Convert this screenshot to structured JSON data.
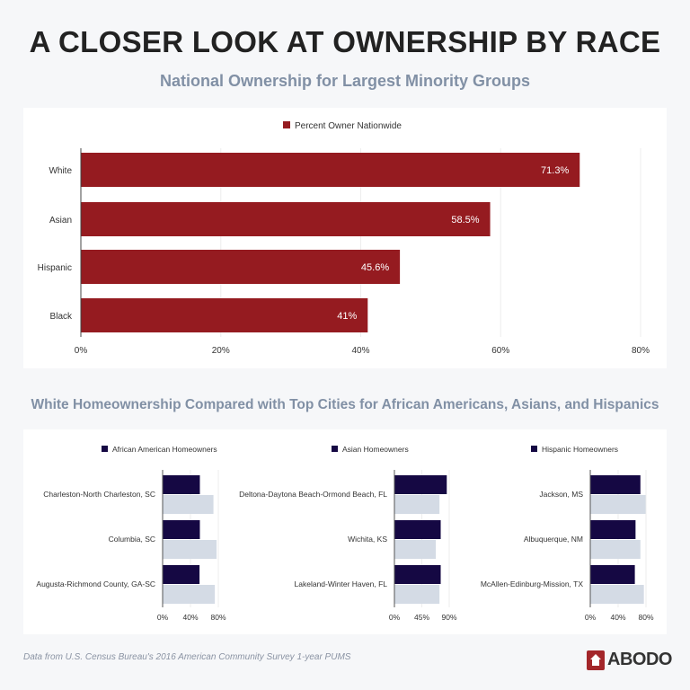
{
  "header": {
    "title": "A CLOSER LOOK AT OWNERSHIP BY RACE",
    "subtitle": "National Ownership for Largest Minority Groups",
    "subtitle2": "White Homeownership Compared with Top Cities for African Americans, Asians, and Hispanics"
  },
  "chart_data": [
    {
      "type": "bar",
      "orientation": "horizontal",
      "categories": [
        "White",
        "Asian",
        "Hispanic",
        "Black"
      ],
      "series": [
        {
          "name": "Percent Owner Nationwide",
          "values": [
            71.3,
            58.5,
            45.6,
            41
          ],
          "labels": [
            "71.3%",
            "58.5%",
            "45.6%",
            "41%"
          ],
          "color": "#951b20"
        }
      ],
      "xlim": [
        0,
        80
      ],
      "xticks": [
        "0%",
        "20%",
        "40%",
        "60%",
        "80%"
      ],
      "grid": true,
      "legend": "top"
    },
    {
      "type": "bar",
      "orientation": "horizontal",
      "categories": [
        "Charleston-North Charleston, SC",
        "Columbia, SC",
        "Augusta-Richmond County, GA-SC"
      ],
      "series": [
        {
          "name": "African American Homeowners",
          "values": [
            53.5,
            53.5,
            53
          ],
          "color": "#150843"
        },
        {
          "values": [
            73,
            77.5,
            75
          ],
          "color": "#d4dbe5"
        }
      ],
      "xlim": [
        0,
        80
      ],
      "xticks": [
        "0%",
        "40%",
        "80%"
      ],
      "legend": "top"
    },
    {
      "type": "bar",
      "orientation": "horizontal",
      "categories": [
        "Deltona-Daytona Beach-Ormond Beach, FL",
        "Wichita, KS",
        "Lakeland-Winter Haven, FL"
      ],
      "series": [
        {
          "name": "Asian Homeowners",
          "values": [
            86,
            76,
            76
          ],
          "color": "#150843"
        },
        {
          "values": [
            74,
            68,
            74
          ],
          "color": "#d4dbe5"
        }
      ],
      "xlim": [
        0,
        90
      ],
      "xticks": [
        "0%",
        "45%",
        "90%"
      ],
      "legend": "top"
    },
    {
      "type": "bar",
      "orientation": "horizontal",
      "categories": [
        "Jackson, MS",
        "Albuquerque, NM",
        "McAllen-Edinburg-Mission, TX"
      ],
      "series": [
        {
          "name": "Hispanic Homeowners",
          "values": [
            72,
            65,
            64
          ],
          "color": "#150843"
        },
        {
          "values": [
            79.5,
            72,
            77
          ],
          "color": "#d4dbe5"
        }
      ],
      "xlim": [
        0,
        80
      ],
      "xticks": [
        "0%",
        "40%",
        "80%"
      ],
      "legend": "top"
    }
  ],
  "footer": {
    "source": "Data from U.S. Census Bureau's 2016 American Community Survey 1-year PUMS",
    "logo_text": "ABODO"
  }
}
